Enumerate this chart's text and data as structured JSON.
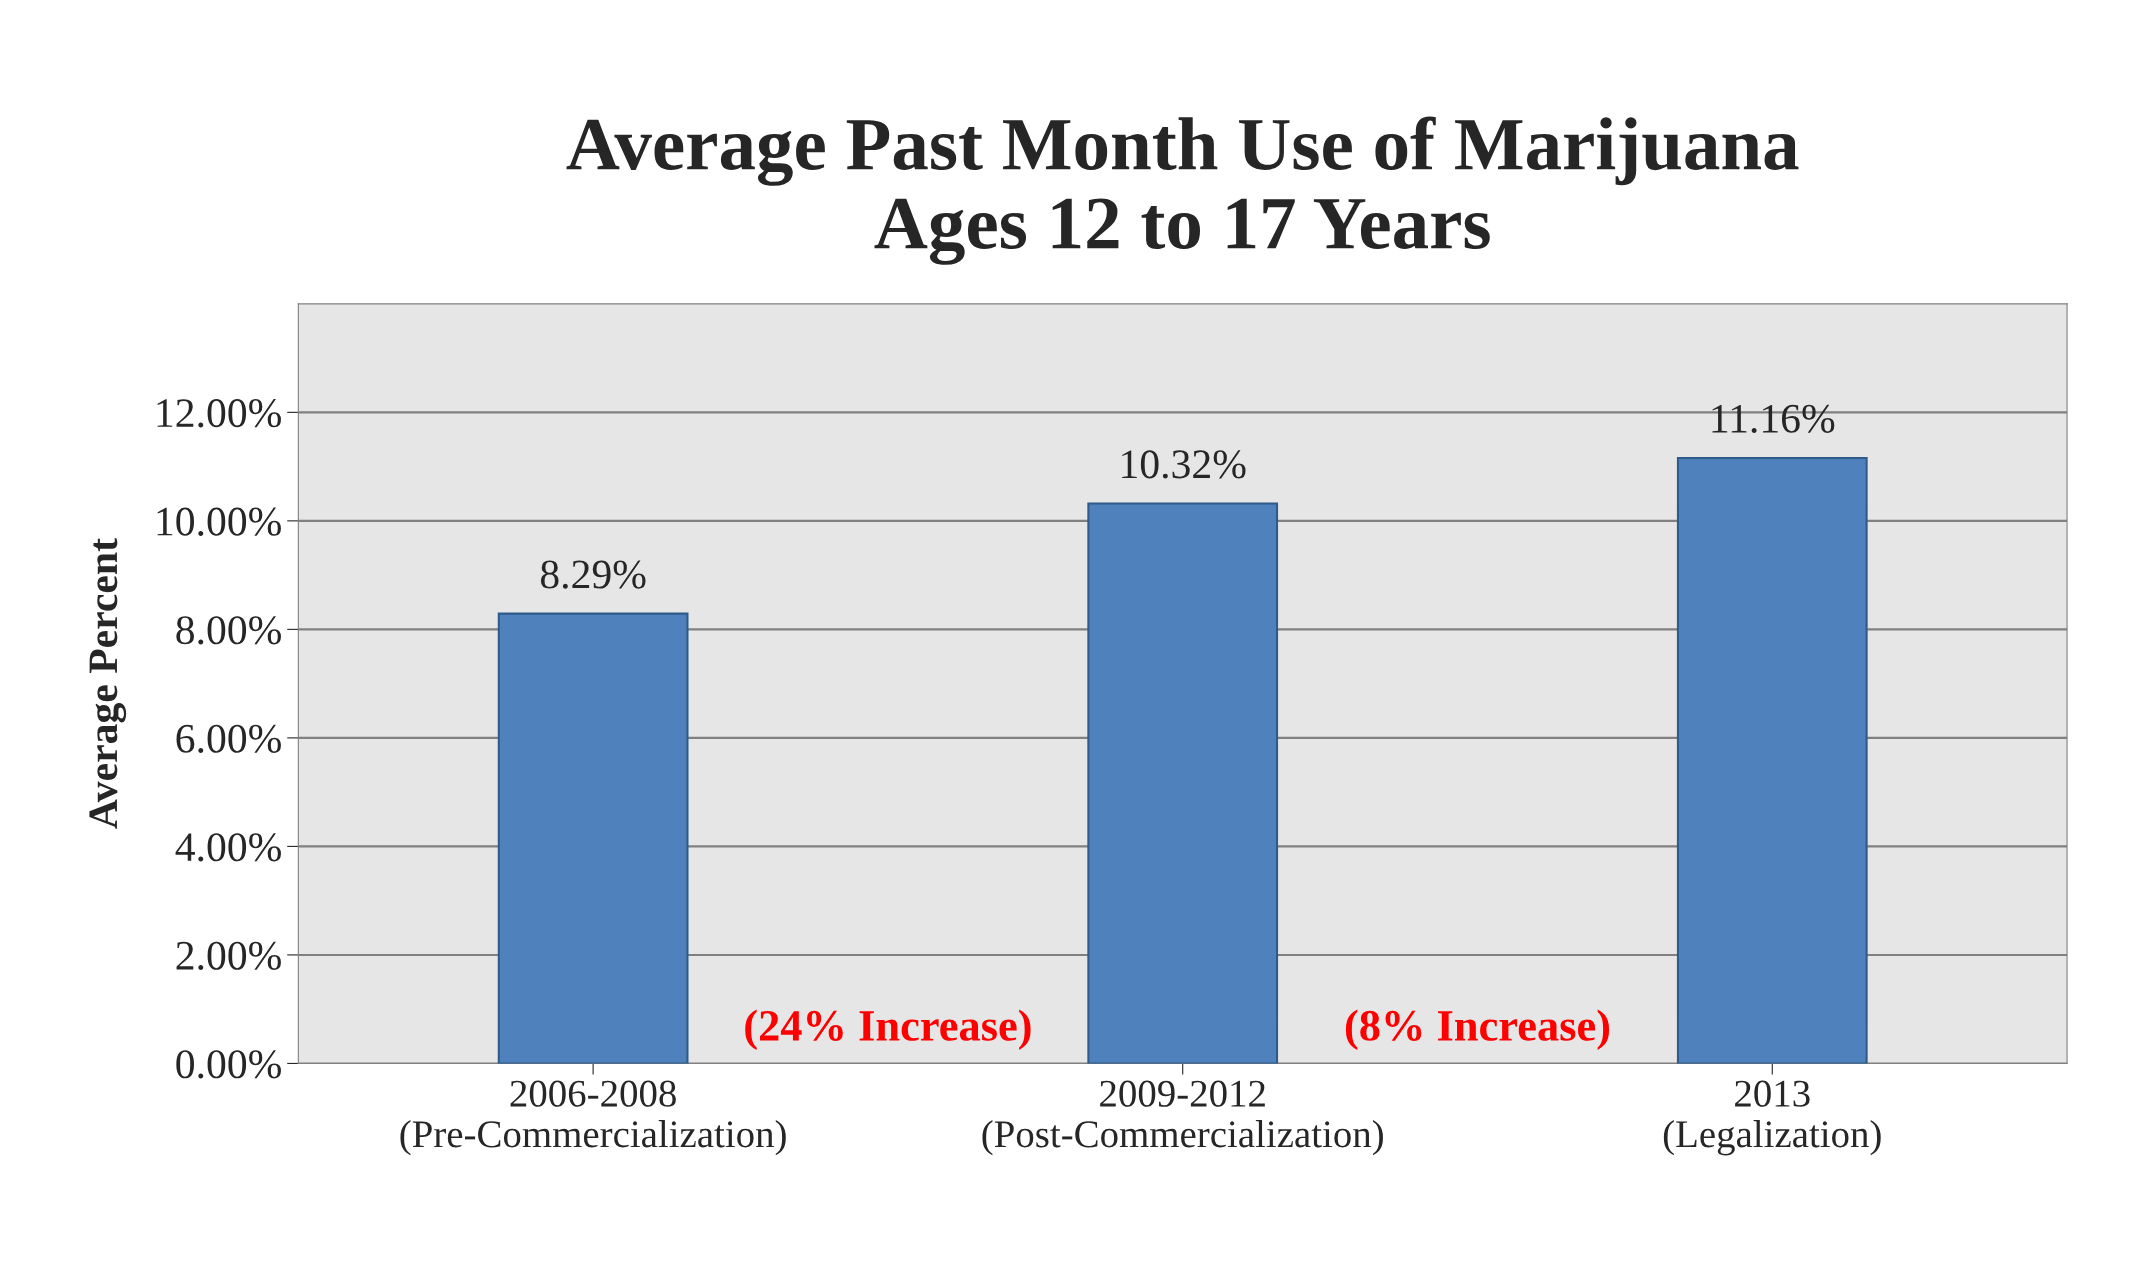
{
  "chart_data": {
    "type": "bar",
    "title": "Average Past Month Use of Marijuana\nAges 12 to 17 Years",
    "ylabel": "Average Percent",
    "categories": [
      "2006-2008\n(Pre-Commercialization)",
      "2009-2012\n(Post-Commercialization)",
      "2013\n(Legalization)"
    ],
    "values": [
      8.29,
      10.32,
      11.16
    ],
    "color": "#4f81bd",
    "value_labels": [
      "8.29%",
      "10.32%",
      "11.16%"
    ],
    "annotations": [
      "(24% Increase)",
      "(8% Increase)"
    ],
    "ylim": [
      0,
      14
    ],
    "yticks": [
      {
        "value": 0,
        "label": "0.00%"
      },
      {
        "value": 2,
        "label": "2.00%"
      },
      {
        "value": 4,
        "label": "4.00%"
      },
      {
        "value": 6,
        "label": "6.00%"
      },
      {
        "value": 8,
        "label": "8.00%"
      },
      {
        "value": 10,
        "label": "10.00%"
      },
      {
        "value": 12,
        "label": "12.00%"
      }
    ],
    "grid": "y",
    "legend": false
  }
}
